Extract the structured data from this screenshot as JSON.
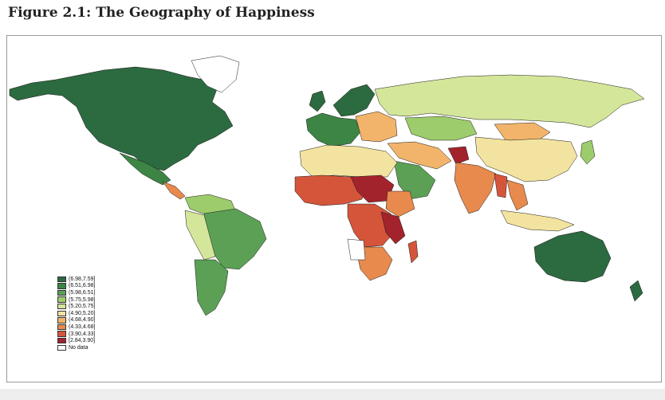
{
  "figure": {
    "title": "Figure 2.1: The Geography of Happiness"
  },
  "legend": {
    "items": [
      {
        "label": "(6.98,7.59]",
        "color": "#2c6a3f"
      },
      {
        "label": "(6.51,6.98]",
        "color": "#3c8545"
      },
      {
        "label": "(5.98,6.51]",
        "color": "#5ba055"
      },
      {
        "label": "(5.75,5.98]",
        "color": "#9ccc6b"
      },
      {
        "label": "(5.20,5.75]",
        "color": "#d4e69a"
      },
      {
        "label": "(4.90,5.20]",
        "color": "#f3e3a0"
      },
      {
        "label": "(4.68,4.90]",
        "color": "#f2b46a"
      },
      {
        "label": "(4.33,4.68]",
        "color": "#e88a4d"
      },
      {
        "label": "(3.90,4.33]",
        "color": "#d5553a"
      },
      {
        "label": "[2.84,3.90]",
        "color": "#a3232c"
      },
      {
        "label": "No data",
        "color": "#ffffff"
      }
    ]
  }
}
